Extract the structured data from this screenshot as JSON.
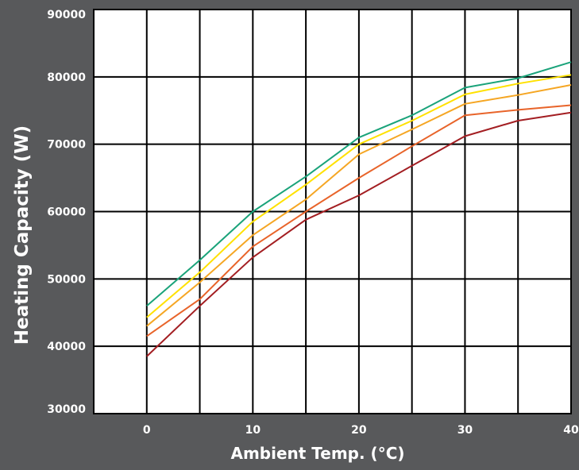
{
  "chart_data": {
    "type": "line",
    "title": "",
    "xlabel": "Ambient Temp. (°C)",
    "ylabel": "Heating Capacity (W)",
    "xlim": [
      -5,
      40
    ],
    "ylim": [
      30000,
      90000
    ],
    "x_ticks": [
      0,
      10,
      20,
      30,
      40
    ],
    "y_ticks": [
      30000,
      40000,
      50000,
      60000,
      70000,
      80000,
      90000
    ],
    "grid": true,
    "legend": "none",
    "series": [
      {
        "color": "#1aa37a",
        "x": [
          0,
          5,
          10,
          15,
          20,
          25,
          30,
          35,
          40
        ],
        "y": [
          46000,
          52800,
          60000,
          65200,
          71000,
          74300,
          78400,
          79800,
          82200
        ]
      },
      {
        "color": "#ffe100",
        "x": [
          0,
          5,
          10,
          15,
          20,
          25,
          30,
          35,
          40
        ],
        "y": [
          44300,
          51000,
          58500,
          64000,
          70000,
          73500,
          77400,
          79000,
          80300
        ]
      },
      {
        "color": "#f5a623",
        "x": [
          0,
          5,
          10,
          15,
          20,
          25,
          30,
          35,
          40
        ],
        "y": [
          43000,
          49500,
          56500,
          61800,
          68500,
          72200,
          76000,
          77300,
          78800
        ]
      },
      {
        "color": "#e8642a",
        "x": [
          0,
          5,
          10,
          15,
          20,
          25,
          30,
          35,
          40
        ],
        "y": [
          41500,
          47000,
          54800,
          60000,
          65000,
          69700,
          74300,
          75100,
          75800
        ]
      },
      {
        "color": "#a31e22",
        "x": [
          0,
          5,
          10,
          15,
          20,
          25,
          30,
          35,
          40
        ],
        "y": [
          38500,
          46000,
          53200,
          58800,
          62400,
          66800,
          71200,
          73500,
          74700
        ]
      }
    ]
  }
}
